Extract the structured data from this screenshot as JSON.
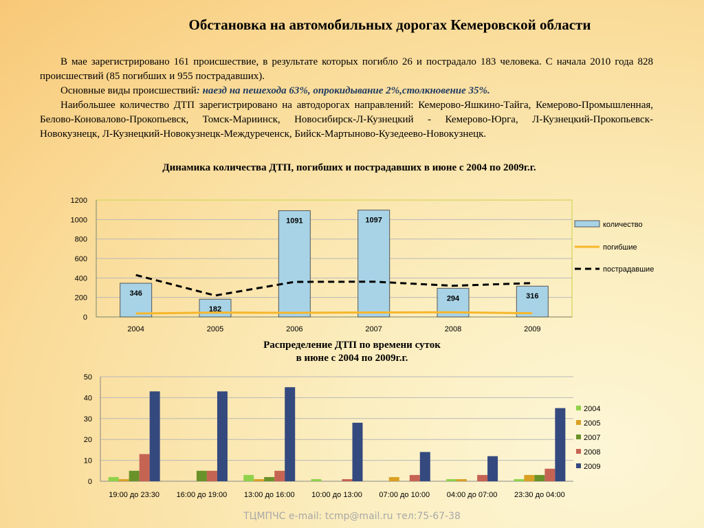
{
  "header": {
    "title": "Обстановка на автомобильных дорогах Кемеровской области"
  },
  "text": {
    "p1": "В мае зарегистрировано 161 происшествие, в результате которых погибло 26 и пострадало 183 человека. С начала 2010 года  828 происшествий (85 погибших и 955 пострадавших).",
    "p2_prefix": "Основные виды происшествий",
    "p2_highlight": ": наезд на пешехода 63%, опрокидывание  2%,столкновение 35%.",
    "p3": "Наибольшее количество ДТП зарегистрировано на автодорогах направлений: Кемерово-Яшкино-Тайга, Кемерово-Промышленная, Белово-Коновалово-Прокопьевск, Томск-Мариинск, Новосибирск-Л-Кузнецкий - Кемерово-Юрга, Л-Кузнецкий-Прокопьевск-Новокузнецк, Л-Кузнецкий-Новокузнецк-Междуреченск, Бийск-Мартыново-Кузедеево-Новокузнецк."
  },
  "footer": {
    "text": "ТЦМПЧС e-mail: tcmp@mail.ru тел:75-67-38"
  },
  "chart_data": [
    {
      "type": "bar",
      "title": "Динамика количества ДТП, погибших и пострадавших в июне  с 2004 по 2009г.г.",
      "categories": [
        "2004",
        "2005",
        "2006",
        "2007",
        "2008",
        "2009"
      ],
      "series": [
        {
          "name": "количество",
          "kind": "bar",
          "color": "#a8d3e6",
          "values": [
            346,
            182,
            1091,
            1097,
            294,
            316
          ],
          "labels": [
            "346",
            "182",
            "1091",
            "1097",
            "294",
            "316"
          ]
        },
        {
          "name": "погибшие",
          "kind": "line",
          "color": "#f7b62a",
          "values": [
            35,
            45,
            42,
            46,
            48,
            38
          ]
        },
        {
          "name": "пострадавшие",
          "kind": "line-dashed",
          "color": "#000000",
          "values": [
            430,
            220,
            360,
            362,
            320,
            348
          ]
        }
      ],
      "ylim": [
        0,
        1200
      ],
      "yticks": [
        "0",
        "200",
        "400",
        "600",
        "800",
        "1000",
        "1200"
      ],
      "legend": "right",
      "grid": true
    },
    {
      "type": "bar",
      "title": [
        "Распределение ДТП по времени суток",
        "в июне с 2004 по 2009г.г."
      ],
      "categories": [
        "19:00  до 23:30",
        "16:00  до 19:00",
        "13:00  до 16:00",
        "10:00  до 13:00",
        "07:00  до 10:00",
        "04:00  до 07:00",
        "23:30  до 04:00"
      ],
      "series": [
        {
          "name": "2004",
          "color": "#8fd24a",
          "values": [
            2,
            0,
            3,
            1,
            0,
            1,
            1
          ]
        },
        {
          "name": "2005",
          "color": "#d9a024",
          "values": [
            1,
            0,
            1,
            0,
            2,
            1,
            3
          ]
        },
        {
          "name": "2007",
          "color": "#6a922a",
          "values": [
            5,
            5,
            2,
            0,
            0,
            0,
            3
          ]
        },
        {
          "name": "2008",
          "color": "#c66454",
          "values": [
            13,
            5,
            5,
            1,
            3,
            3,
            6
          ]
        },
        {
          "name": "2009",
          "color": "#34497e",
          "values": [
            43,
            43,
            45,
            28,
            14,
            12,
            35
          ]
        }
      ],
      "ylim": [
        0,
        50
      ],
      "yticks": [
        "0",
        "10",
        "20",
        "30",
        "40",
        "50"
      ],
      "legend": "right",
      "grid": true
    }
  ]
}
